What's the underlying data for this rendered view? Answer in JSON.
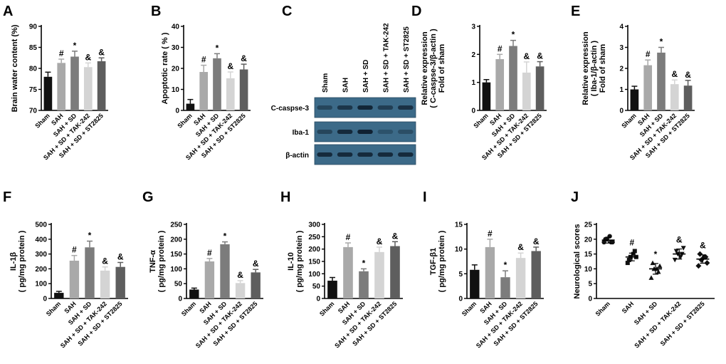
{
  "panels": [
    {
      "letter": "A",
      "type": "bar",
      "ylabel": [
        "Brain water content (%)"
      ],
      "ylim": [
        70,
        90
      ],
      "yticks": [
        70,
        75,
        80,
        85,
        90
      ],
      "categories": [
        "Sham",
        "SAH",
        "SAH + SD",
        "SAH + SD + TAK-242",
        "SAH + SD + ST2825"
      ],
      "values": [
        78.0,
        81.3,
        82.8,
        80.3,
        81.7
      ],
      "errors": [
        1.1,
        0.9,
        1.3,
        1.0,
        0.8
      ],
      "marks": [
        "",
        "#",
        "*",
        "&",
        "&"
      ]
    },
    {
      "letter": "B",
      "type": "bar",
      "ylabel": [
        "Apoptotic rate ( % )"
      ],
      "ylim": [
        0,
        40
      ],
      "yticks": [
        0,
        10,
        20,
        30,
        40
      ],
      "categories": [
        "Sham",
        "SAH",
        "SAH + SD",
        "SAH + SD + TAK-242",
        "SAH + SD + ST2825"
      ],
      "values": [
        3.2,
        18.3,
        24.8,
        15.3,
        19.5
      ],
      "errors": [
        2.0,
        3.2,
        2.2,
        3.0,
        2.5
      ],
      "marks": [
        "",
        "#",
        "*",
        "&",
        "&"
      ]
    },
    {
      "letter": "D",
      "type": "bar",
      "ylabel": [
        "Relative expression",
        "( C-caspse-3/β-actin )",
        "Fold of sham"
      ],
      "ylim": [
        0,
        3
      ],
      "yticks": [
        0,
        1,
        2,
        3
      ],
      "categories": [
        "Sham",
        "SAH",
        "SAH + SD",
        "SAH + SD + TAK-242",
        "SAH + SD + ST2825"
      ],
      "values": [
        1.0,
        1.83,
        2.3,
        1.35,
        1.57
      ],
      "errors": [
        0.1,
        0.17,
        0.2,
        0.38,
        0.17
      ],
      "marks": [
        "",
        "#",
        "*",
        "&",
        "&"
      ]
    },
    {
      "letter": "E",
      "type": "bar",
      "ylabel": [
        "Relative expression",
        "( Iba-1/β-actin )",
        "Fold of sham"
      ],
      "ylim": [
        0,
        4
      ],
      "yticks": [
        0,
        1,
        2,
        3,
        4
      ],
      "categories": [
        "Sham",
        "SAH",
        "SAH + SD",
        "SAH + SD + TAK-242",
        "SAH + SD + ST2825"
      ],
      "values": [
        1.0,
        2.15,
        2.75,
        1.25,
        1.18
      ],
      "errors": [
        0.15,
        0.25,
        0.25,
        0.2,
        0.25
      ],
      "marks": [
        "",
        "#",
        "*",
        "&",
        "&"
      ]
    },
    {
      "letter": "F",
      "type": "bar",
      "ylabel": [
        "IL-1β",
        "( pg/mg protein )"
      ],
      "ylim": [
        0,
        500
      ],
      "yticks": [
        0,
        100,
        200,
        300,
        400,
        500
      ],
      "categories": [
        "Sham",
        "SAH",
        "SAH + SD",
        "SAH + SD + TAK-242",
        "SAH + SD + ST2825"
      ],
      "values": [
        38,
        255,
        345,
        188,
        213
      ],
      "errors": [
        10,
        35,
        42,
        25,
        30
      ],
      "marks": [
        "",
        "#",
        "*",
        "&",
        "&"
      ]
    },
    {
      "letter": "G",
      "type": "bar",
      "ylabel": [
        "TNF-α",
        "( pg/mg protein )"
      ],
      "ylim": [
        0,
        250
      ],
      "yticks": [
        0,
        50,
        100,
        150,
        200,
        250
      ],
      "categories": [
        "Sham",
        "SAH",
        "SAH + SD",
        "SAH + SD + TAK-242",
        "SAH + SD + ST2825"
      ],
      "values": [
        30,
        125,
        183,
        52,
        88
      ],
      "errors": [
        5,
        10,
        8,
        8,
        10
      ],
      "marks": [
        "",
        "#",
        "*",
        "&",
        "&"
      ]
    },
    {
      "letter": "H",
      "type": "bar",
      "ylabel": [
        "IL-10",
        "( pg/mg protein )"
      ],
      "ylim": [
        0,
        300
      ],
      "yticks": [
        0,
        50,
        100,
        150,
        200,
        250,
        300
      ],
      "categories": [
        "Sham",
        "SAH",
        "SAH + SD",
        "SAH + SD + TAK-242",
        "SAH + SD + ST2825"
      ],
      "values": [
        72,
        208,
        110,
        188,
        212
      ],
      "errors": [
        13,
        17,
        10,
        20,
        18
      ],
      "marks": [
        "",
        "#",
        "*",
        "&",
        "&"
      ]
    },
    {
      "letter": "I",
      "type": "bar",
      "ylabel": [
        "TGF-β1",
        "( pg/mg protein )"
      ],
      "ylim": [
        0,
        15
      ],
      "yticks": [
        0,
        5,
        10,
        15
      ],
      "categories": [
        "Sham",
        "SAH",
        "SAH + SD",
        "SAH + SD + TAK-242",
        "SAH + SD + ST2825"
      ],
      "values": [
        5.8,
        10.4,
        4.3,
        8.2,
        9.6
      ],
      "errors": [
        1.0,
        1.6,
        1.3,
        1.0,
        0.8
      ],
      "marks": [
        "",
        "#",
        "*",
        "&",
        "&"
      ]
    },
    {
      "letter": "J",
      "type": "scatter",
      "ylabel": [
        "Neurological scores"
      ],
      "ylim": [
        0,
        25
      ],
      "yticks": [
        0,
        5,
        10,
        15,
        20,
        25
      ],
      "categories": [
        "Sham",
        "SAH",
        "SAH + SD",
        "SAH + SD + TAK-242",
        "SAH + SD + ST2825"
      ],
      "values": [
        19.7,
        14.0,
        10.0,
        15.0,
        13.3
      ],
      "errors": [
        1.0,
        1.3,
        1.8,
        1.7,
        1.4
      ],
      "marks": [
        "",
        "#",
        "*",
        "&",
        "&"
      ],
      "points": [
        [
          19,
          20,
          21,
          19,
          20,
          19
        ],
        [
          12,
          14,
          15,
          14,
          13,
          16
        ],
        [
          7,
          10,
          10,
          11,
          12,
          9
        ],
        [
          13,
          15,
          14,
          17,
          16,
          15
        ],
        [
          11,
          13,
          14,
          12,
          15,
          14
        ]
      ]
    }
  ],
  "blot": {
    "letter": "C",
    "lanes": [
      "Sham",
      "SAH",
      "SAH + SD",
      "SAH + SD + TAK-242",
      "SAH + SD + ST2825"
    ],
    "rows": [
      {
        "label": "C-caspse-3",
        "intensity": [
          0.45,
          0.65,
          0.85,
          0.55,
          0.7
        ]
      },
      {
        "label": "Iba-1",
        "intensity": [
          0.45,
          0.8,
          0.9,
          0.3,
          0.35
        ]
      },
      {
        "label": "β-actin",
        "intensity": [
          0.8,
          0.8,
          0.8,
          0.8,
          0.8
        ]
      }
    ]
  },
  "colors": {
    "bars": [
      "#111111",
      "#a9a9a9",
      "#7c7c7c",
      "#d4d4d4",
      "#5e5e5e"
    ],
    "blot_bg": "#3c6a88",
    "band": "#0b1a29"
  }
}
